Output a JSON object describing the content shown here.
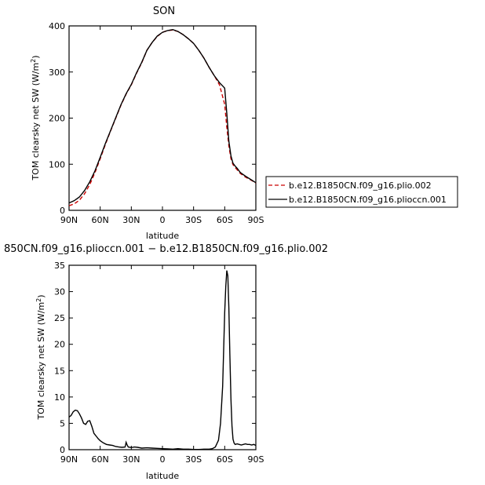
{
  "chart_data": [
    {
      "type": "line",
      "title": "SON",
      "xlabel": "latitude",
      "ylabel": "TOM clearsky net SW (W/m²)",
      "ylabel_main": "TOM clearsky net SW (W/m",
      "ylabel_sup": "2",
      "ylabel_end": ")",
      "xlim": [
        90,
        -90
      ],
      "ylim": [
        0,
        400
      ],
      "x_ticks": [
        90,
        60,
        30,
        0,
        -30,
        -60,
        -90
      ],
      "x_tick_labels": [
        "90N",
        "60N",
        "30N",
        "0",
        "30S",
        "60S",
        "90S"
      ],
      "y_ticks": [
        0,
        100,
        200,
        300,
        400
      ],
      "y_tick_labels": [
        "0",
        "100",
        "200",
        "300",
        "400"
      ],
      "x": [
        90,
        85,
        80,
        75,
        70,
        65,
        60,
        55,
        50,
        45,
        40,
        35,
        30,
        25,
        20,
        15,
        10,
        5,
        0,
        -5,
        -10,
        -15,
        -20,
        -25,
        -30,
        -35,
        -40,
        -45,
        -50,
        -55,
        -60,
        -62,
        -64,
        -66,
        -68,
        -70,
        -72,
        -75,
        -80,
        -85,
        -90
      ],
      "series": [
        {
          "name": "b.e12.B1850CN.f09_g16.plio.002",
          "color": "#cc0000",
          "dash": true,
          "values": [
            10,
            14,
            22,
            36,
            56,
            82,
            112,
            143,
            172,
            200,
            228,
            252,
            272,
            297,
            320,
            347,
            364,
            377,
            386,
            390,
            391,
            388,
            381,
            372,
            362,
            347,
            330,
            310,
            292,
            272,
            230,
            180,
            140,
            112,
            99,
            93,
            88,
            80,
            72,
            66,
            59
          ]
        },
        {
          "name": "b.e12.B1850CN.f09_g16.plioccn.001",
          "color": "#000000",
          "dash": false,
          "values": [
            16,
            21,
            29,
            43,
            62,
            86,
            115,
            145,
            173,
            201,
            229,
            253,
            273,
            298,
            321,
            347,
            364,
            378,
            386,
            390,
            392,
            388,
            381,
            372,
            362,
            347,
            330,
            310,
            292,
            277,
            265,
            210,
            150,
            118,
            102,
            96,
            91,
            82,
            74,
            67,
            60
          ]
        }
      ]
    },
    {
      "type": "line",
      "title": "850CN.f09_g16.plioccn.001 − b.e12.B1850CN.f09_g16.plio.002",
      "xlabel": "latitude",
      "ylabel": "TOM clearsky net SW (W/m²)",
      "ylabel_main": "TOM clearsky net SW (W/m",
      "ylabel_sup": "2",
      "ylabel_end": ")",
      "xlim": [
        90,
        -90
      ],
      "ylim": [
        0,
        35
      ],
      "x_ticks": [
        90,
        60,
        30,
        0,
        -30,
        -60,
        -90
      ],
      "x_tick_labels": [
        "90N",
        "60N",
        "30N",
        "0",
        "30S",
        "60S",
        "90S"
      ],
      "y_ticks": [
        0,
        5,
        10,
        15,
        20,
        25,
        30,
        35
      ],
      "y_tick_labels": [
        "0",
        "5",
        "10",
        "15",
        "20",
        "25",
        "30",
        "35"
      ],
      "x": [
        90,
        88,
        86,
        84,
        82,
        80,
        78,
        76,
        74,
        72,
        70,
        68,
        66,
        64,
        62,
        60,
        57,
        54,
        51,
        48,
        45,
        42,
        39,
        36,
        35,
        34,
        33,
        30,
        27,
        24,
        20,
        15,
        10,
        5,
        0,
        -5,
        -10,
        -15,
        -20,
        -25,
        -30,
        -35,
        -40,
        -45,
        -48,
        -51,
        -54,
        -56,
        -58,
        -59,
        -60,
        -61,
        -62,
        -63,
        -64,
        -65,
        -66,
        -67,
        -68,
        -69,
        -70,
        -72,
        -74,
        -76,
        -78,
        -80,
        -82,
        -84,
        -86,
        -88,
        -90
      ],
      "series": [
        {
          "name": "",
          "color": "#000000",
          "dash": false,
          "values": [
            6.2,
            6.5,
            7.2,
            7.5,
            7.4,
            6.8,
            6.0,
            5.0,
            4.8,
            5.4,
            5.5,
            4.4,
            3.1,
            2.6,
            2.1,
            1.7,
            1.3,
            1.0,
            0.9,
            0.8,
            0.6,
            0.5,
            0.45,
            0.5,
            1.4,
            0.9,
            0.5,
            0.4,
            0.5,
            0.45,
            0.3,
            0.35,
            0.3,
            0.25,
            0.2,
            0.15,
            0.1,
            0.2,
            0.1,
            0.1,
            0.05,
            0.05,
            0.1,
            0.1,
            0.2,
            0.5,
            1.8,
            5.0,
            12.0,
            19.0,
            26.0,
            31.0,
            34.0,
            33.0,
            27.0,
            18.0,
            9.5,
            4.5,
            2.0,
            1.3,
            1.0,
            1.1,
            1.0,
            0.9,
            1.0,
            1.1,
            1.0,
            1.0,
            0.9,
            1.0,
            0.8
          ]
        }
      ]
    }
  ]
}
